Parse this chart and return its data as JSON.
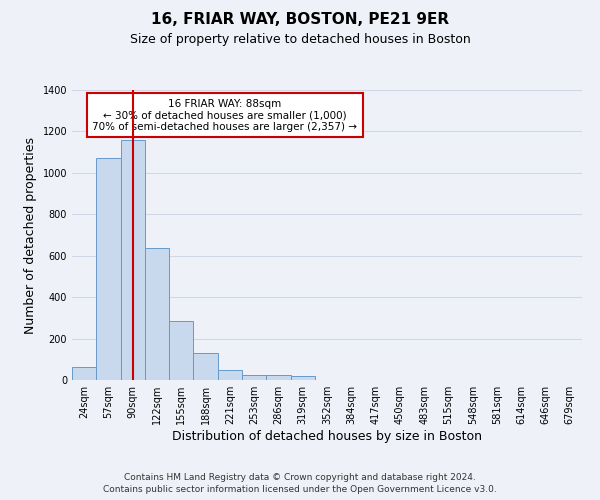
{
  "title": "16, FRIAR WAY, BOSTON, PE21 9ER",
  "subtitle": "Size of property relative to detached houses in Boston",
  "xlabel": "Distribution of detached houses by size in Boston",
  "ylabel": "Number of detached properties",
  "categories": [
    "24sqm",
    "57sqm",
    "90sqm",
    "122sqm",
    "155sqm",
    "188sqm",
    "221sqm",
    "253sqm",
    "286sqm",
    "319sqm",
    "352sqm",
    "384sqm",
    "417sqm",
    "450sqm",
    "483sqm",
    "515sqm",
    "548sqm",
    "581sqm",
    "614sqm",
    "646sqm",
    "679sqm"
  ],
  "values": [
    65,
    1070,
    1160,
    635,
    285,
    130,
    48,
    25,
    25,
    18,
    0,
    0,
    0,
    0,
    0,
    0,
    0,
    0,
    0,
    0,
    0
  ],
  "bar_color": "#c8d9ee",
  "bar_edge_color": "#6699cc",
  "vline_x": 2,
  "vline_color": "#cc0000",
  "annotation_box_text": "16 FRIAR WAY: 88sqm\n← 30% of detached houses are smaller (1,000)\n70% of semi-detached houses are larger (2,357) →",
  "annotation_box_color": "#cc0000",
  "annotation_box_fill": "#ffffff",
  "ylim": [
    0,
    1400
  ],
  "yticks": [
    0,
    200,
    400,
    600,
    800,
    1000,
    1200,
    1400
  ],
  "footer_line1": "Contains HM Land Registry data © Crown copyright and database right 2024.",
  "footer_line2": "Contains public sector information licensed under the Open Government Licence v3.0.",
  "bg_color": "#eef2f8",
  "plot_bg_color": "#eef2f8",
  "grid_color": "#d0d8e8",
  "title_fontsize": 11,
  "subtitle_fontsize": 9,
  "axis_label_fontsize": 9,
  "tick_fontsize": 7,
  "footer_fontsize": 6.5
}
